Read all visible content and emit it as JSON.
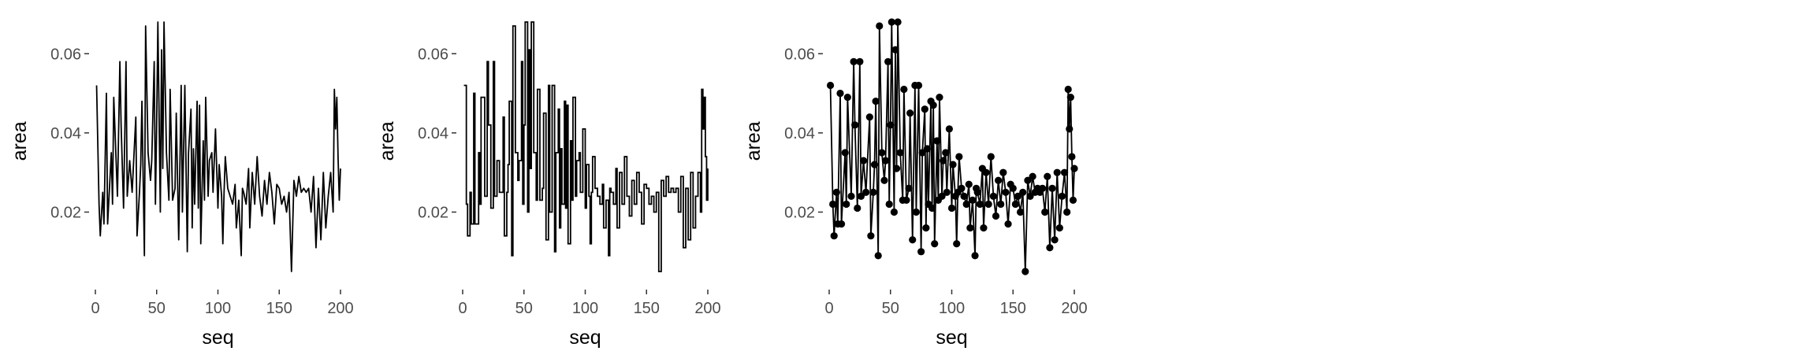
{
  "chart_data": [
    {
      "type": "line",
      "style": "line",
      "xlabel": "seq",
      "ylabel": "area",
      "xlim": [
        0,
        200
      ],
      "ylim": [
        0.004,
        0.068
      ],
      "xticks": [
        0,
        50,
        100,
        150,
        200
      ],
      "yticks": [
        0.02,
        0.04,
        0.06
      ],
      "xtick_labels": [
        "0",
        "50",
        "100",
        "150",
        "200"
      ],
      "ytick_labels": [
        "0.02",
        "0.04",
        "0.06"
      ],
      "grid": false,
      "series_ref": "area_series"
    },
    {
      "type": "line",
      "style": "step",
      "xlabel": "seq",
      "ylabel": "area",
      "xlim": [
        0,
        200
      ],
      "ylim": [
        0.004,
        0.068
      ],
      "xticks": [
        0,
        50,
        100,
        150,
        200
      ],
      "yticks": [
        0.02,
        0.04,
        0.06
      ],
      "xtick_labels": [
        "0",
        "50",
        "100",
        "150",
        "200"
      ],
      "ytick_labels": [
        "0.02",
        "0.04",
        "0.06"
      ],
      "grid": false,
      "series_ref": "area_series"
    },
    {
      "type": "line",
      "style": "line+points",
      "xlabel": "seq",
      "ylabel": "area",
      "xlim": [
        0,
        200
      ],
      "ylim": [
        0.004,
        0.068
      ],
      "xticks": [
        0,
        50,
        100,
        150,
        200
      ],
      "yticks": [
        0.02,
        0.04,
        0.06
      ],
      "xtick_labels": [
        "0",
        "50",
        "100",
        "150",
        "200"
      ],
      "ytick_labels": [
        "0.02",
        "0.04",
        "0.06"
      ],
      "grid": false,
      "series_ref": "area_series"
    }
  ],
  "area_series": {
    "x": [
      1,
      3,
      4,
      6,
      7,
      9,
      10,
      13,
      14,
      15,
      18,
      20,
      21,
      23,
      25,
      26,
      28,
      30,
      33,
      34,
      36,
      37,
      38,
      40,
      41,
      43,
      45,
      46,
      48,
      49,
      50,
      51,
      53,
      54,
      55,
      56,
      58,
      60,
      61,
      63,
      65,
      66,
      68,
      70,
      71,
      73,
      75,
      76,
      78,
      79,
      80,
      81,
      83,
      84,
      85,
      86,
      88,
      89,
      90,
      92,
      93,
      95,
      96,
      98,
      100,
      101,
      103,
      104,
      105,
      106,
      108,
      110,
      112,
      114,
      115,
      117,
      119,
      120,
      121,
      123,
      125,
      126,
      128,
      130,
      132,
      134,
      136,
      138,
      140,
      142,
      144,
      146,
      148,
      150,
      152,
      154,
      156,
      158,
      160,
      162,
      164,
      166,
      168,
      170,
      172,
      174,
      176,
      178,
      180,
      182,
      184,
      186,
      188,
      190,
      192,
      194,
      195,
      196,
      197,
      198,
      199,
      200
    ],
    "y": [
      0.052,
      0.022,
      0.014,
      0.025,
      0.017,
      0.05,
      0.017,
      0.035,
      0.022,
      0.049,
      0.024,
      0.058,
      0.042,
      0.021,
      0.058,
      0.024,
      0.033,
      0.025,
      0.044,
      0.014,
      0.025,
      0.032,
      0.048,
      0.009,
      0.067,
      0.035,
      0.028,
      0.033,
      0.058,
      0.022,
      0.042,
      0.068,
      0.02,
      0.061,
      0.031,
      0.068,
      0.035,
      0.023,
      0.051,
      0.023,
      0.026,
      0.045,
      0.013,
      0.052,
      0.02,
      0.052,
      0.01,
      0.035,
      0.046,
      0.016,
      0.036,
      0.022,
      0.048,
      0.021,
      0.047,
      0.012,
      0.038,
      0.023,
      0.049,
      0.024,
      0.033,
      0.035,
      0.025,
      0.041,
      0.021,
      0.032,
      0.024,
      0.012,
      0.025,
      0.034,
      0.026,
      0.024,
      0.022,
      0.027,
      0.016,
      0.023,
      0.009,
      0.026,
      0.025,
      0.022,
      0.031,
      0.016,
      0.03,
      0.022,
      0.034,
      0.024,
      0.019,
      0.028,
      0.022,
      0.03,
      0.025,
      0.017,
      0.027,
      0.026,
      0.022,
      0.024,
      0.02,
      0.025,
      0.005,
      0.028,
      0.024,
      0.029,
      0.025,
      0.026,
      0.025,
      0.026,
      0.02,
      0.029,
      0.011,
      0.026,
      0.013,
      0.03,
      0.016,
      0.024,
      0.03,
      0.02,
      0.051,
      0.041,
      0.049,
      0.034,
      0.023,
      0.031
    ]
  }
}
